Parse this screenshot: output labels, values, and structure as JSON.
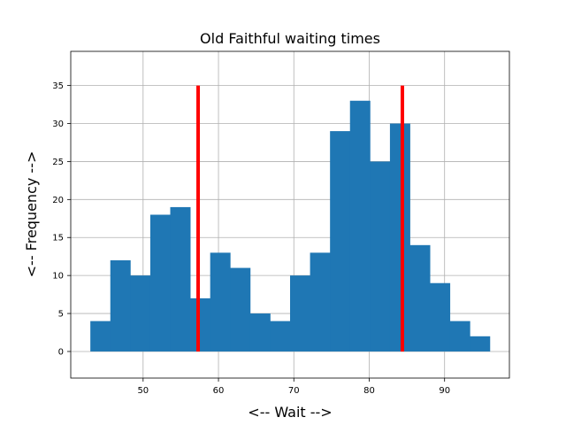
{
  "chart_data": {
    "type": "bar",
    "title": "Old Faithful waiting times",
    "xlabel": "<-- Wait -->",
    "ylabel": "<-- Frequency -->",
    "xlim": [
      40.4,
      98.6
    ],
    "ylim": [
      -3.5,
      39.5
    ],
    "xticks": [
      50,
      60,
      70,
      80,
      90
    ],
    "yticks": [
      0,
      5,
      10,
      15,
      20,
      25,
      30,
      35
    ],
    "grid": true,
    "bar_color": "#1f77b4",
    "bins": {
      "edges": [
        43.0,
        45.65,
        48.3,
        50.95,
        53.6,
        56.25,
        58.9,
        61.55,
        64.2,
        66.85,
        69.5,
        72.15,
        74.8,
        77.45,
        80.1,
        82.75,
        85.4,
        88.05,
        90.7,
        93.35,
        96.0
      ],
      "counts": [
        4,
        12,
        10,
        18,
        19,
        7,
        13,
        11,
        5,
        4,
        10,
        13,
        29,
        33,
        25,
        30,
        14,
        9,
        4,
        2
      ]
    },
    "vlines": [
      {
        "x": 57.3,
        "ymin": 0,
        "ymax": 35,
        "color": "#ff0000"
      },
      {
        "x": 84.4,
        "ymin": 0,
        "ymax": 35,
        "color": "#ff0000"
      }
    ]
  }
}
